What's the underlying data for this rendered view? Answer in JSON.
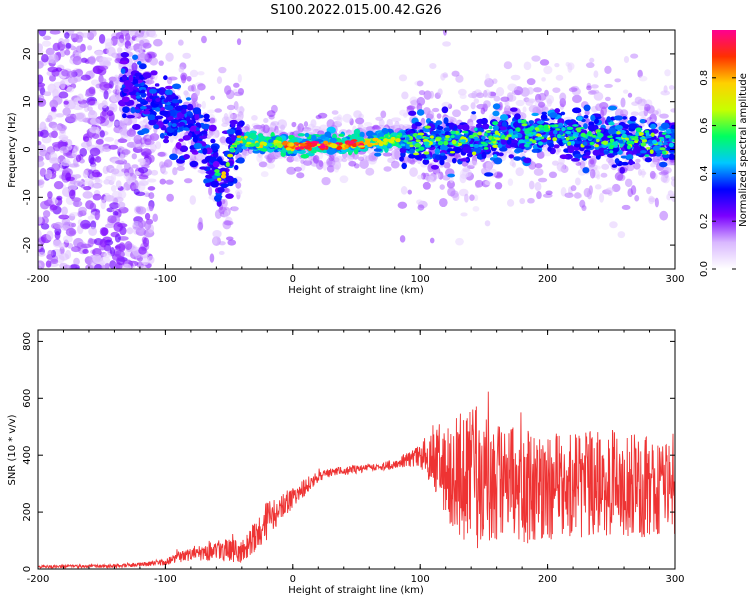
{
  "title": "S100.2022.015.00.42.G26",
  "chart_data": [
    {
      "type": "heatmap",
      "xlabel": "Height of straight line (km)",
      "ylabel": "Frequency (Hz)",
      "xlim": [
        -200,
        300
      ],
      "ylim": [
        -25,
        25
      ],
      "x_ticks": [
        "-200",
        "-100",
        "0",
        "100",
        "200",
        "300"
      ],
      "y_ticks": [
        "20",
        "10",
        "0",
        "-10",
        "-20"
      ],
      "colorbar": {
        "label": "Normalized spectral amplitude",
        "range": [
          0,
          1
        ],
        "ticks": [
          "0.0",
          "0.2",
          "0.4",
          "0.6",
          "0.8"
        ],
        "colors": [
          "#ffffff",
          "#d9b8ff",
          "#7b00ff",
          "#0000ff",
          "#00c8ff",
          "#00ff60",
          "#c8ff00",
          "#ffd000",
          "#ff3000",
          "#ff0090"
        ]
      },
      "ridge": {
        "x": [
          -130,
          -110,
          -90,
          -75,
          -65,
          -58,
          -52,
          -48,
          -42,
          -35,
          -28,
          -20,
          -10,
          0,
          10,
          30,
          50,
          70,
          85,
          100,
          120,
          150,
          180,
          200,
          220,
          250,
          270,
          290,
          300
        ],
        "y": [
          13,
          10,
          6,
          3,
          -1,
          -6,
          -5,
          0,
          2,
          2,
          1,
          1,
          1,
          0.5,
          1,
          1,
          1,
          2,
          2,
          2,
          2,
          2,
          3,
          4,
          3,
          2,
          2,
          1,
          2
        ]
      }
    },
    {
      "type": "line",
      "xlabel": "Height of straight line (km)",
      "ylabel": "SNR (10 * v/v)",
      "xlim": [
        -200,
        300
      ],
      "ylim": [
        0,
        840
      ],
      "x_ticks": [
        "-200",
        "-100",
        "0",
        "100",
        "200",
        "300"
      ],
      "y_ticks": [
        "800",
        "600",
        "400",
        "200",
        "0"
      ],
      "color": "#ee3333",
      "envelope": {
        "x": [
          -200,
          -150,
          -120,
          -100,
          -80,
          -60,
          -40,
          -30,
          -20,
          -10,
          0,
          10,
          20,
          30,
          40,
          50,
          60,
          70,
          80,
          90,
          100,
          110,
          120,
          130,
          140,
          150,
          160,
          180,
          200,
          220,
          250,
          280,
          300
        ],
        "mean": [
          8,
          10,
          15,
          25,
          55,
          70,
          60,
          110,
          170,
          210,
          250,
          290,
          325,
          340,
          345,
          350,
          360,
          360,
          370,
          385,
          395,
          400,
          350,
          320,
          330,
          320,
          300,
          290,
          280,
          290,
          300,
          290,
          300
        ],
        "amplitude": [
          5,
          6,
          8,
          12,
          25,
          40,
          40,
          50,
          70,
          50,
          40,
          30,
          20,
          15,
          15,
          15,
          15,
          15,
          20,
          25,
          40,
          110,
          160,
          220,
          260,
          250,
          220,
          200,
          190,
          190,
          190,
          180,
          180
        ]
      }
    }
  ]
}
